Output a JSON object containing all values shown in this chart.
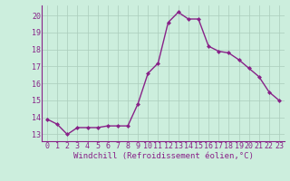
{
  "x": [
    0,
    1,
    2,
    3,
    4,
    5,
    6,
    7,
    8,
    9,
    10,
    11,
    12,
    13,
    14,
    15,
    16,
    17,
    18,
    19,
    20,
    21,
    22,
    23
  ],
  "y": [
    13.9,
    13.6,
    13.0,
    13.4,
    13.4,
    13.4,
    13.5,
    13.5,
    13.5,
    14.8,
    16.6,
    17.2,
    19.6,
    20.2,
    19.8,
    19.8,
    18.2,
    17.9,
    17.8,
    17.4,
    16.9,
    16.4,
    15.5,
    15.0
  ],
  "line_color": "#882288",
  "marker": "D",
  "marker_size": 2.0,
  "line_width": 1.0,
  "xlabel": "Windchill (Refroidissement éolien,°C)",
  "xlabel_fontsize": 6.5,
  "ylabel_ticks": [
    13,
    14,
    15,
    16,
    17,
    18,
    19,
    20
  ],
  "xlim": [
    -0.5,
    23.5
  ],
  "ylim": [
    12.6,
    20.6
  ],
  "bg_color": "#cceedd",
  "grid_color": "#aaccbb",
  "tick_color": "#882288",
  "tick_fontsize": 6.0,
  "xtick_labels": [
    "0",
    "1",
    "2",
    "3",
    "4",
    "5",
    "6",
    "7",
    "8",
    "9",
    "10",
    "11",
    "12",
    "13",
    "14",
    "15",
    "16",
    "17",
    "18",
    "19",
    "20",
    "21",
    "22",
    "23"
  ]
}
